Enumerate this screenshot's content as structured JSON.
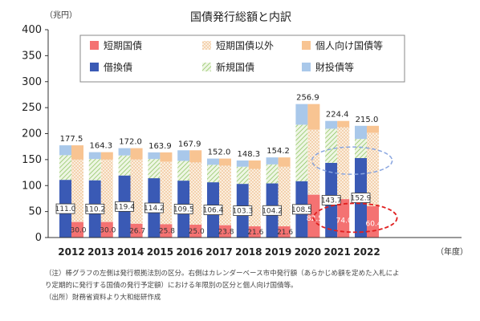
{
  "chart_data": {
    "type": "bar",
    "title": "国債発行総額と内訳",
    "y_unit": "（兆円）",
    "x_unit": "（年度）",
    "ylim": [
      0,
      400
    ],
    "yticks": [
      0,
      50,
      100,
      150,
      200,
      250,
      300,
      350,
      400
    ],
    "grid": false,
    "legend_position": "top",
    "categories": [
      "2012",
      "2013",
      "2014",
      "2015",
      "2016",
      "2017",
      "2018",
      "2019",
      "2020",
      "2021",
      "2022"
    ],
    "totals": [
      "177.5",
      "164.3",
      "172.0",
      "163.9",
      "167.9",
      "152.0",
      "148.3",
      "154.2",
      "256.9",
      "224.4",
      "215.0"
    ],
    "left_bar": {
      "series": [
        {
          "name": "借換債",
          "color": "#3a5ab5",
          "values": [
            111.0,
            110.2,
            119.4,
            114.2,
            109.5,
            106.4,
            103.3,
            104.2,
            108.5,
            143.7,
            152.9
          ],
          "labels": [
            "111.0",
            "110.2",
            "119.4",
            "114.2",
            "109.5",
            "106.4",
            "103.3",
            "104.2",
            "108.5",
            "143.7",
            "152.9"
          ]
        },
        {
          "name": "新規国債",
          "color": "#a6cf78",
          "values": [
            47.5,
            41.0,
            38.6,
            36.9,
            38.0,
            33.6,
            33.0,
            36.6,
            108.6,
            65.7,
            36.9
          ]
        },
        {
          "name": "財投債等",
          "color": "#a9c8ea",
          "values": [
            19.0,
            13.1,
            14.0,
            12.8,
            20.4,
            12.0,
            12.0,
            13.4,
            39.8,
            15.0,
            25.2
          ]
        }
      ]
    },
    "right_bar": {
      "series": [
        {
          "name": "短期国債",
          "color": "#f47272",
          "values": [
            30.0,
            30.0,
            26.7,
            25.8,
            25.0,
            23.8,
            21.6,
            21.6,
            82.5,
            74.0,
            60.4
          ],
          "labels": [
            "30.0",
            "30.0",
            "26.7",
            "25.8",
            "25.0",
            "23.8",
            "21.6",
            "21.6",
            "82.5",
            "74.0",
            "60.4"
          ]
        },
        {
          "name": "短期国債以外",
          "color": "#f7d8b4",
          "values": [
            120.0,
            120.0,
            123.5,
            120.1,
            119.7,
            114.7,
            110.6,
            114.6,
            125.0,
            138.4,
            141.1
          ]
        },
        {
          "name": "個人向け国債等",
          "color": "#f8c492",
          "values": [
            27.5,
            14.3,
            21.8,
            18.0,
            23.2,
            13.5,
            16.1,
            18.0,
            49.4,
            12.0,
            13.5
          ]
        }
      ]
    },
    "legend": [
      {
        "name": "短期国債",
        "color": "#f47272",
        "pattern": "solid"
      },
      {
        "name": "短期国債以外",
        "color": "#f0b070",
        "pattern": "dots"
      },
      {
        "name": "個人向け国債等",
        "color": "#f8c492",
        "pattern": "solid"
      },
      {
        "name": "借換債",
        "color": "#3a5ab5",
        "pattern": "solid"
      },
      {
        "name": "新規国債",
        "color": "#a6cf78",
        "pattern": "hatch"
      },
      {
        "name": "財投債等",
        "color": "#a9c8ea",
        "pattern": "solid"
      }
    ],
    "highlights": [
      {
        "shape": "ellipse",
        "style": "dashed",
        "color": "#8aa6e0",
        "categories": [
          "2021",
          "2022"
        ],
        "around": "借換債 labels"
      },
      {
        "shape": "ellipse",
        "style": "dashed",
        "color": "#e02020",
        "categories": [
          "2021",
          "2022"
        ],
        "around": "短期国債 labels"
      }
    ]
  },
  "notes": [
    "（注）棒グラフの左側は発行根拠法別の区分。右側はカレンダーベース市中発行額（あらかじめ額を定めた入札によ",
    "り定期的に発行する国債の発行予定額）における年限別の区分と個人向け国債等。",
    "（出所）財務省資料より大和総研作成"
  ]
}
